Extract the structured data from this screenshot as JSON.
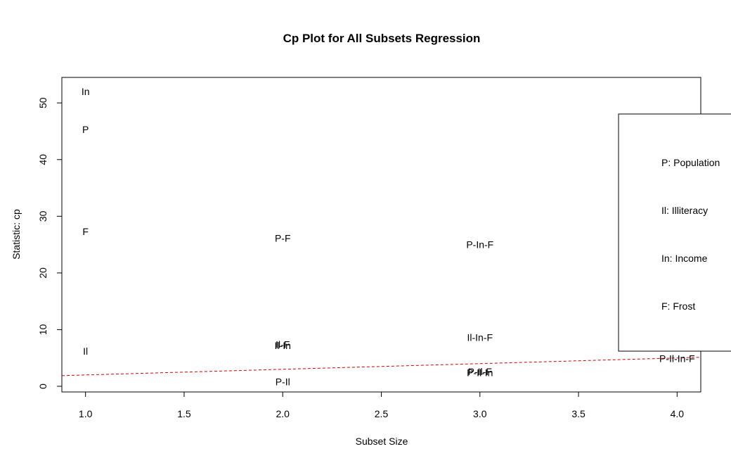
{
  "chart_data": {
    "type": "scatter",
    "title": "Cp Plot for All Subsets Regression",
    "xlabel": "Subset Size",
    "ylabel": "Statistic: cp",
    "xlim": [
      0.88,
      4.12
    ],
    "ylim": [
      -1.0,
      54.5
    ],
    "x_ticks": [
      "1.0",
      "1.5",
      "2.0",
      "2.5",
      "3.0",
      "3.5",
      "4.0"
    ],
    "y_ticks": [
      "0",
      "10",
      "20",
      "30",
      "40",
      "50"
    ],
    "points": [
      {
        "label": "In",
        "x": 1,
        "y": 52.0
      },
      {
        "label": "P",
        "x": 1,
        "y": 45.3
      },
      {
        "label": "F",
        "x": 1,
        "y": 27.3
      },
      {
        "label": "Il",
        "x": 1,
        "y": 6.2
      },
      {
        "label": "P-F",
        "x": 2,
        "y": 26.1
      },
      {
        "label": "Il-F",
        "x": 2,
        "y": 7.4
      },
      {
        "label": "Il-In",
        "x": 2,
        "y": 7.2
      },
      {
        "label": "P-Il",
        "x": 2,
        "y": 0.8
      },
      {
        "label": "P-In-F",
        "x": 3,
        "y": 25.0
      },
      {
        "label": "Il-In-F",
        "x": 3,
        "y": 8.6
      },
      {
        "label": "P-Il-F",
        "x": 3,
        "y": 2.6
      },
      {
        "label": "P-Il-In",
        "x": 3,
        "y": 2.4
      },
      {
        "label": "P-Il-In-F",
        "x": 4,
        "y": 4.9
      }
    ],
    "reference_line": {
      "style": "dashed",
      "color": "#cc0000",
      "x": [
        0.88,
        4.12
      ],
      "y": [
        1.88,
        5.12
      ]
    },
    "legend": {
      "placement": "right",
      "entries": [
        "P: Population",
        "Il: Illiteracy",
        "In: Income",
        "F: Frost"
      ]
    },
    "grid": false
  }
}
